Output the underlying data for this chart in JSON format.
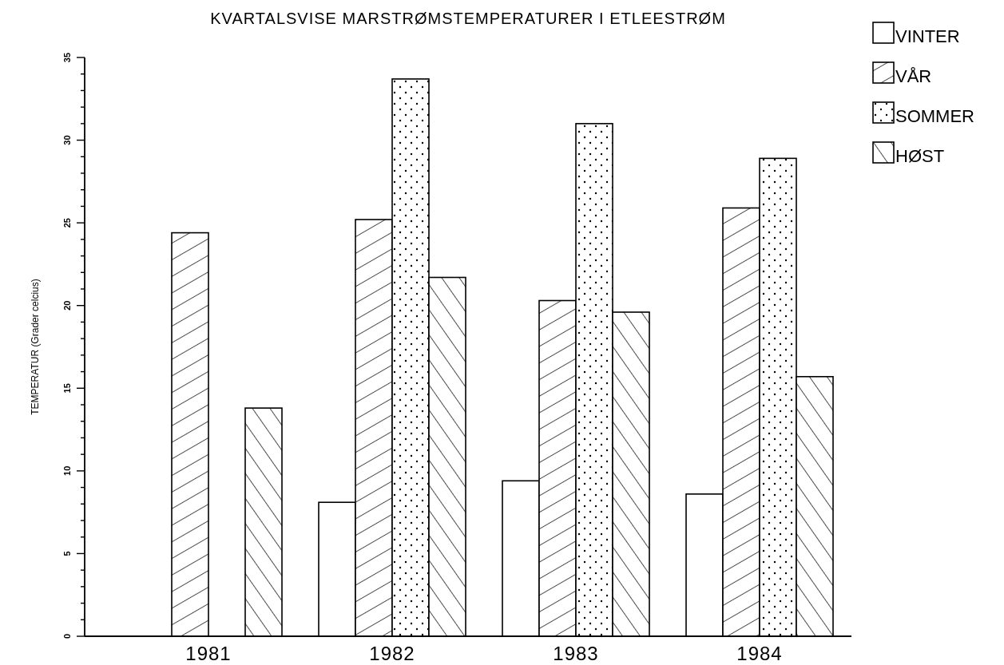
{
  "chart_data": {
    "type": "bar",
    "title": "KVARTALSVISE MARSTRØMSTEMPERATURER I ETLEESTRØM",
    "ylabel": "TEMPERATUR (Grader celcius)",
    "categories": [
      "1981",
      "1982",
      "1983",
      "1984"
    ],
    "series": [
      {
        "name": "VINTER",
        "color": "#000000",
        "values": [
          null,
          8.1,
          9.4,
          8.6
        ]
      },
      {
        "name": "VÅR",
        "color": "#000000",
        "values": [
          24.4,
          25.2,
          20.3,
          25.9
        ]
      },
      {
        "name": "SOMMER",
        "color": "#000000",
        "values": [
          null,
          33.7,
          31.0,
          28.9
        ]
      },
      {
        "name": "HØST",
        "color": "#000000",
        "values": [
          13.8,
          21.7,
          19.6,
          15.7
        ]
      }
    ],
    "ylim": [
      0,
      35
    ],
    "yticks": [
      0,
      {
        "value": 1,
        "label": null
      },
      {
        "value": 2,
        "label": null
      },
      {
        "value": 3,
        "label": null
      },
      {
        "value": 4,
        "label": null
      },
      5,
      {
        "value": 6,
        "label": null
      },
      {
        "value": 7,
        "label": null
      },
      {
        "value": 8,
        "label": null
      },
      {
        "value": 9,
        "label": null
      },
      10,
      {
        "value": 11,
        "label": null
      },
      {
        "value": 12,
        "label": null
      },
      {
        "value": 13,
        "label": null
      },
      {
        "value": 14,
        "label": null
      },
      15,
      {
        "value": 16,
        "label": null
      },
      {
        "value": 17,
        "label": null
      },
      {
        "value": 18,
        "label": null
      },
      {
        "value": 19,
        "label": null
      },
      20,
      {
        "value": 21,
        "label": null
      },
      {
        "value": 22,
        "label": null
      },
      {
        "value": 23,
        "label": null
      },
      {
        "value": 24,
        "label": null
      },
      25,
      {
        "value": 26,
        "label": null
      },
      {
        "value": 27,
        "label": null
      },
      {
        "value": 28,
        "label": null
      },
      {
        "value": 29,
        "label": null
      },
      30,
      {
        "value": 31,
        "label": null
      },
      {
        "value": 32,
        "label": null
      },
      {
        "value": 33,
        "label": null
      },
      {
        "value": 34,
        "label": null
      },
      35
    ],
    "legend": "top right",
    "grid": false
  }
}
